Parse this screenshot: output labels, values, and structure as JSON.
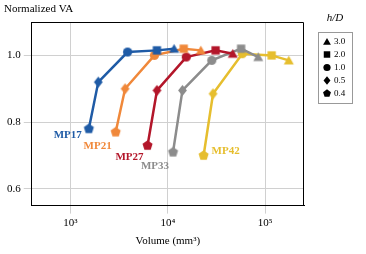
{
  "chart_data": {
    "type": "line",
    "x_label": "Volume (mm³)",
    "y_label": "Normalized VA",
    "log": "x",
    "grid": true,
    "xlim": [
      400,
      250000
    ],
    "xticks": [
      {
        "value": 1000,
        "label": "10³"
      },
      {
        "value": 10000,
        "label": "10⁴"
      },
      {
        "value": 100000,
        "label": "10⁵"
      }
    ],
    "ylim": [
      0.55,
      1.1
    ],
    "yticks": [
      0.6,
      0.8,
      {
        "value": 1.0,
        "label": "1.0"
      }
    ],
    "marker_legend": {
      "title": "h/D",
      "labels": [
        "3.0",
        "2.0",
        "1.0",
        "0.5",
        "0.4"
      ],
      "markers": [
        "triangle",
        "square",
        "circle",
        "diamond",
        "pentagon"
      ]
    },
    "series": [
      {
        "name": "MP17",
        "color": "#1f5ba6",
        "marker": [
          "pentagon",
          "diamond",
          "circle",
          "square",
          "triangle"
        ],
        "x": [
          1543,
          1929,
          3859,
          7717,
          11576
        ],
        "values": [
          0.78,
          0.92,
          1.01,
          1.015,
          1.02
        ]
      },
      {
        "name": "MP21",
        "color": "#f0883a",
        "marker": [
          "pentagon",
          "diamond",
          "circle",
          "square",
          "triangle"
        ],
        "x": [
          2909,
          3637,
          7274,
          14547,
          21821
        ],
        "values": [
          0.77,
          0.9,
          1.0,
          1.02,
          1.015
        ]
      },
      {
        "name": "MP27",
        "color": "#b3162a",
        "marker": [
          "pentagon",
          "diamond",
          "circle",
          "square",
          "triangle"
        ],
        "x": [
          6184,
          7730,
          15459,
          30918,
          46377
        ],
        "values": [
          0.73,
          0.895,
          0.995,
          1.015,
          1.005
        ]
      },
      {
        "name": "MP33",
        "color": "#8c8c8c",
        "marker": [
          "pentagon",
          "diamond",
          "circle",
          "square",
          "triangle"
        ],
        "x": [
          11290,
          14113,
          28225,
          56450,
          84676
        ],
        "values": [
          0.71,
          0.895,
          0.985,
          1.02,
          0.995
        ]
      },
      {
        "name": "MP42",
        "color": "#e6be2e",
        "marker": [
          "pentagon",
          "diamond",
          "circle",
          "square",
          "triangle"
        ],
        "x": [
          23276,
          29094,
          58189,
          116378,
          174567
        ],
        "values": [
          0.7,
          0.885,
          1.005,
          1.0,
          0.985
        ]
      }
    ]
  }
}
